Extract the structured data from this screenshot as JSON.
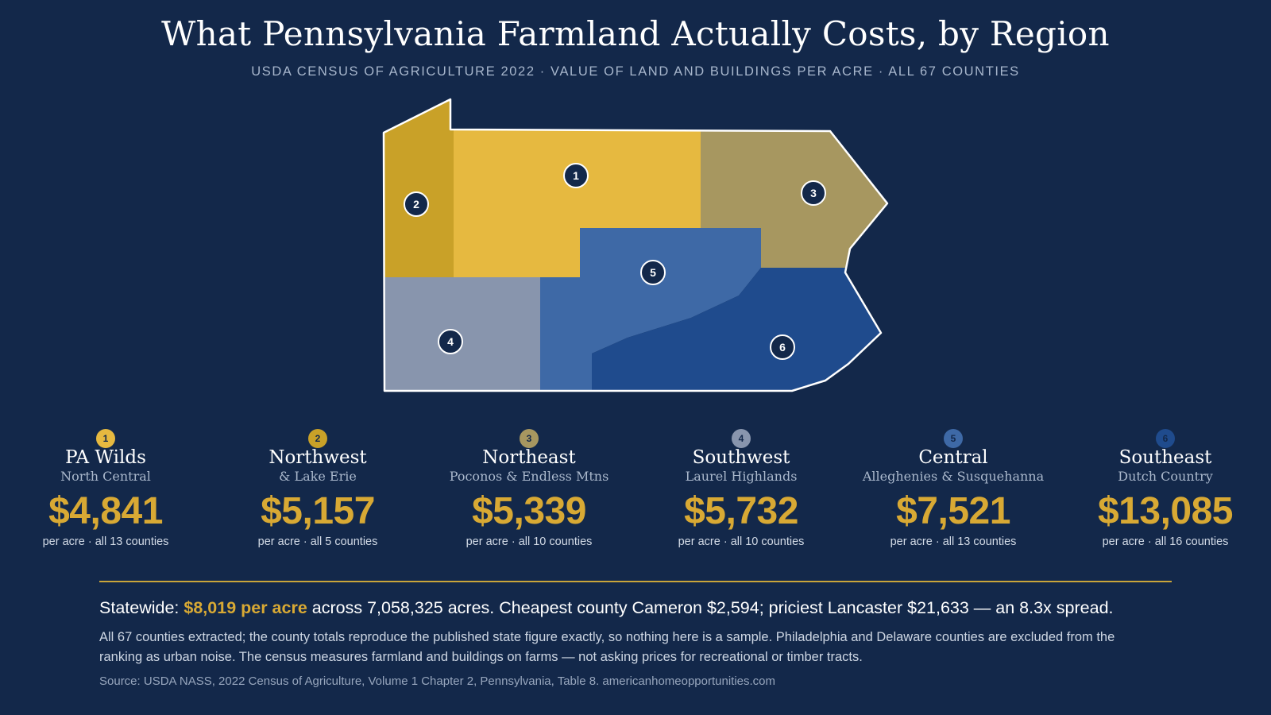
{
  "title": "What Pennsylvania Farmland Actually Costs, by Region",
  "subtitle": "USDA CENSUS OF AGRICULTURE 2022 · VALUE OF LAND AND BUILDINGS PER ACRE · ALL 67 COUNTIES",
  "map": {
    "regions": [
      {
        "number": "1",
        "color": "#e6b940"
      },
      {
        "number": "2",
        "color": "#c9a128"
      },
      {
        "number": "3",
        "color": "#a79760"
      },
      {
        "number": "4",
        "color": "#8895ad"
      },
      {
        "number": "5",
        "color": "#3e69a6"
      },
      {
        "number": "6",
        "color": "#1f4b8d"
      }
    ],
    "outline_color": "#ffffff",
    "marker_color": "#13284a"
  },
  "regions": [
    {
      "number": "1",
      "name": "PA Wilds",
      "subname": "North Central",
      "price": "$4,841",
      "per": "per acre · all 13 counties",
      "color": "#e6b940"
    },
    {
      "number": "2",
      "name": "Northwest",
      "subname": "& Lake Erie",
      "price": "$5,157",
      "per": "per acre · all 5 counties",
      "color": "#c9a128"
    },
    {
      "number": "3",
      "name": "Northeast",
      "subname": "Poconos & Endless Mtns",
      "price": "$5,339",
      "per": "per acre · all 10 counties",
      "color": "#a79760"
    },
    {
      "number": "4",
      "name": "Southwest",
      "subname": "Laurel Highlands",
      "price": "$5,732",
      "per": "per acre · all 10 counties",
      "color": "#8895ad"
    },
    {
      "number": "5",
      "name": "Central",
      "subname": "Alleghenies & Susquehanna",
      "price": "$7,521",
      "per": "per acre · all 13 counties",
      "color": "#3e69a6"
    },
    {
      "number": "6",
      "name": "Southeast",
      "subname": "Dutch Country",
      "price": "$13,085",
      "per": "per acre · all 16 counties",
      "color": "#1f4b8d"
    }
  ],
  "statewide": {
    "label": "Statewide:",
    "highlight": "$8,019 per acre",
    "rest": "across 7,058,325 acres. Cheapest county Cameron $2,594; priciest Lancaster $21,633 — an 8.3x spread."
  },
  "note": "All 67 counties extracted; the county totals reproduce the published state figure exactly, so nothing here is a sample. Philadelphia and Delaware counties are excluded from the ranking as urban noise. The census measures farmland and buildings on farms — not asking prices for recreational or timber tracts.",
  "source": "Source: USDA NASS, 2022 Census of Agriculture, Volume 1 Chapter 2, Pennsylvania, Table 8. americanhomeopportunities.com",
  "colors": {
    "background": "#13284a",
    "accent": "#d8a934",
    "divider": "#c9a53a"
  }
}
